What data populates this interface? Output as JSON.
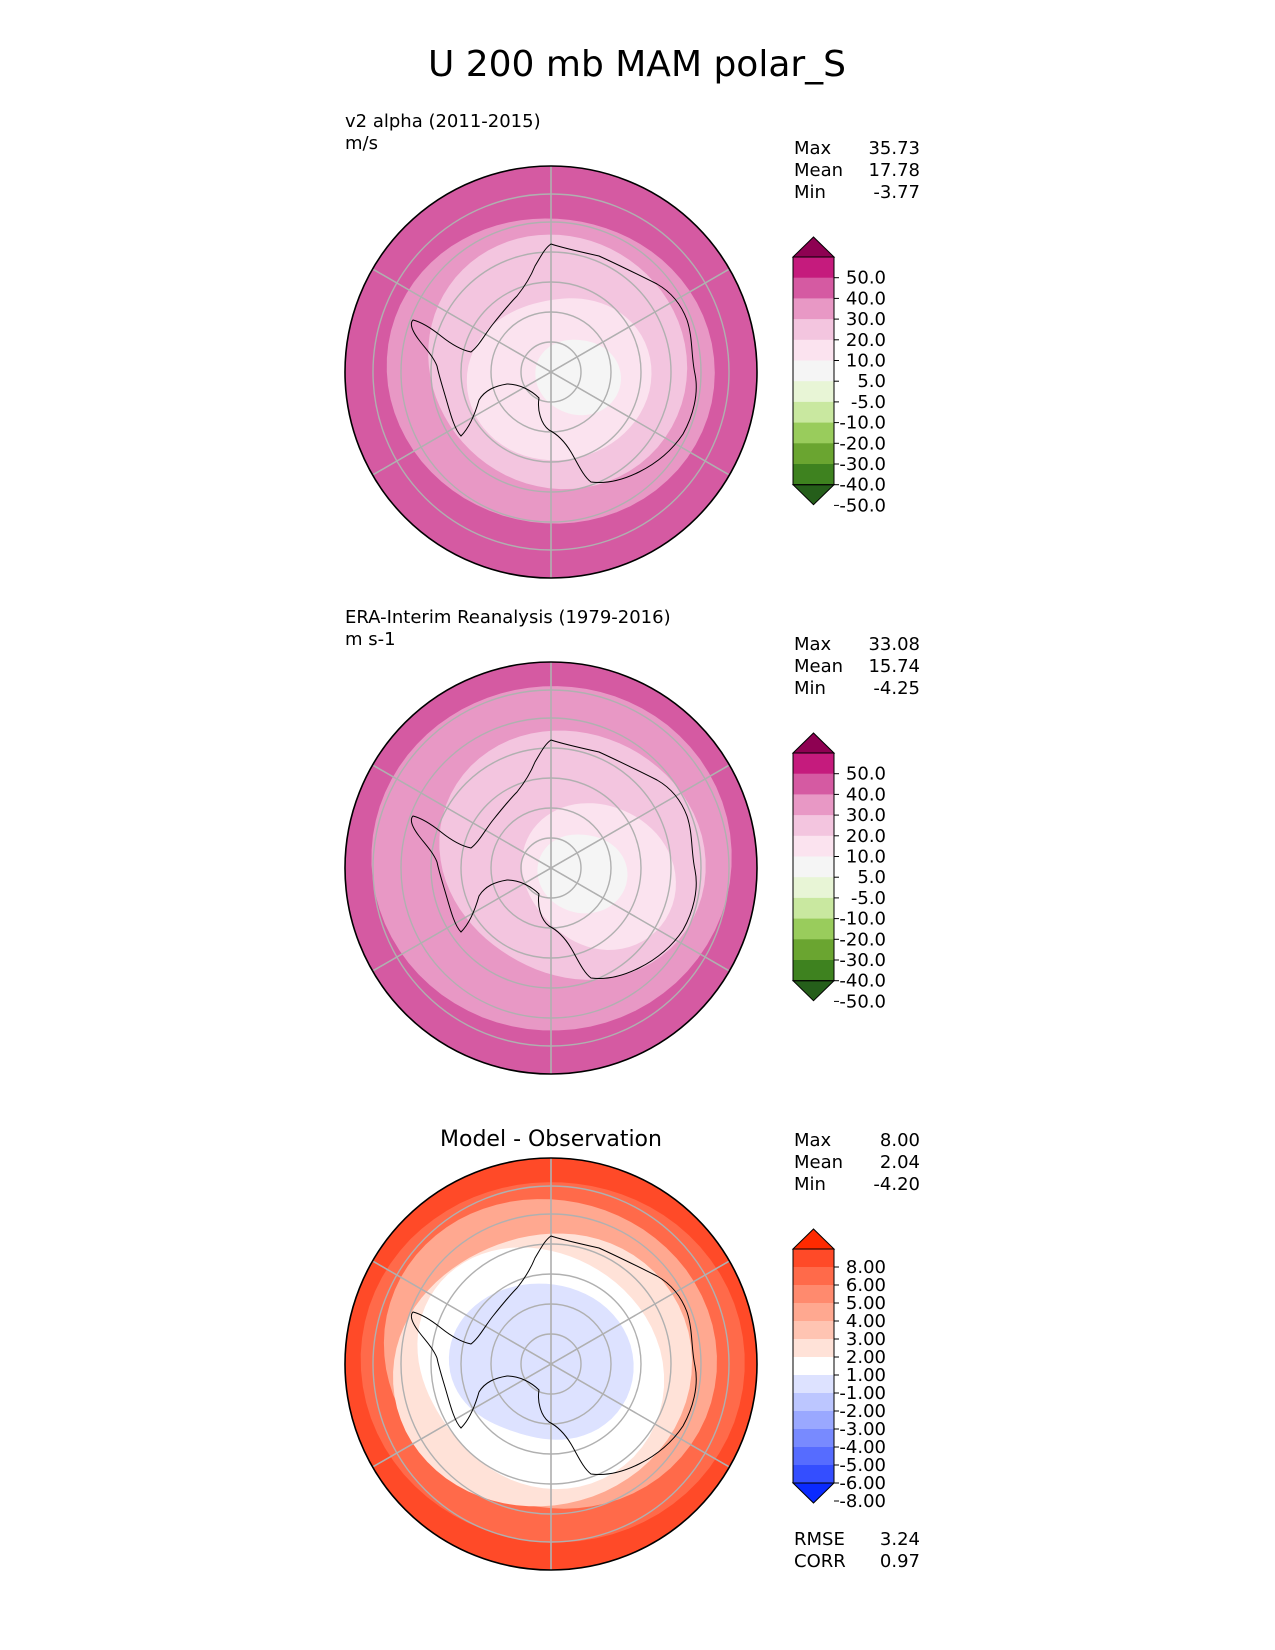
{
  "figure": {
    "title": "U 200 mb MAM polar_S"
  },
  "colors": {
    "full_field": [
      "#276419",
      "#4d9221",
      "#7fbc41",
      "#b8e186",
      "#e6f5d0",
      "#f7f7f7",
      "#fde0ef",
      "#f1b6da",
      "#de77ae",
      "#c51b7d",
      "#8e0152"
    ],
    "diff_field": [
      "#053061",
      "#2166ac",
      "#4393c3",
      "#92c5de",
      "#d1e5f0",
      "#ffffff",
      "#fddbc7",
      "#f4a582",
      "#d6604d",
      "#b2182b",
      "#67001f"
    ]
  },
  "chart_data": [
    {
      "type": "heatmap",
      "projection": "south-polar-stereographic",
      "title": "v2 alpha (2011-2015)",
      "subtitle": "m/s",
      "stats": [
        {
          "label": "Max",
          "value": "35.73"
        },
        {
          "label": "Mean",
          "value": "17.78"
        },
        {
          "label": "Min",
          "value": "-3.77"
        }
      ],
      "colorbar": {
        "ticks": [
          "50.0",
          "40.0",
          "30.0",
          "20.0",
          "10.0",
          "5.0",
          "-5.0",
          "-10.0",
          "-20.0",
          "-30.0",
          "-40.0",
          "-50.0"
        ],
        "colors": [
          "#8e0152",
          "#c51b7d",
          "#d55aa2",
          "#e898c5",
          "#f3c5df",
          "#fbe3ef",
          "#f5f5f5",
          "#e8f5d6",
          "#c9e8a0",
          "#99cc5c",
          "#6aa530",
          "#3e821f",
          "#255e1a"
        ]
      },
      "bands": [
        {
          "value_range": [
            30,
            40
          ],
          "color": "#d55aa2"
        },
        {
          "value_range": [
            20,
            30
          ],
          "color": "#e898c5"
        },
        {
          "value_range": [
            10,
            20
          ],
          "color": "#f3c5df"
        },
        {
          "value_range": [
            5,
            10
          ],
          "color": "#fbe3ef"
        },
        {
          "value_range": [
            -5,
            5
          ],
          "color": "#f5f5f5"
        }
      ]
    },
    {
      "type": "heatmap",
      "projection": "south-polar-stereographic",
      "title": "ERA-Interim Reanalysis (1979-2016)",
      "subtitle": "m s-1",
      "stats": [
        {
          "label": "Max",
          "value": "33.08"
        },
        {
          "label": "Mean",
          "value": "15.74"
        },
        {
          "label": "Min",
          "value": "-4.25"
        }
      ],
      "colorbar": {
        "ticks": [
          "50.0",
          "40.0",
          "30.0",
          "20.0",
          "10.0",
          "5.0",
          "-5.0",
          "-10.0",
          "-20.0",
          "-30.0",
          "-40.0",
          "-50.0"
        ],
        "colors": [
          "#8e0152",
          "#c51b7d",
          "#d55aa2",
          "#e898c5",
          "#f3c5df",
          "#fbe3ef",
          "#f5f5f5",
          "#e8f5d6",
          "#c9e8a0",
          "#99cc5c",
          "#6aa530",
          "#3e821f",
          "#255e1a"
        ]
      },
      "bands": [
        {
          "value_range": [
            30,
            40
          ],
          "color": "#d55aa2"
        },
        {
          "value_range": [
            20,
            30
          ],
          "color": "#e898c5"
        },
        {
          "value_range": [
            10,
            20
          ],
          "color": "#f3c5df"
        },
        {
          "value_range": [
            5,
            10
          ],
          "color": "#fbe3ef"
        },
        {
          "value_range": [
            -5,
            5
          ],
          "color": "#f5f5f5"
        }
      ]
    },
    {
      "type": "heatmap",
      "projection": "south-polar-stereographic",
      "title": "Model - Observation",
      "subtitle": "",
      "stats": [
        {
          "label": "Max",
          "value": "8.00"
        },
        {
          "label": "Mean",
          "value": "2.04"
        },
        {
          "label": "Min",
          "value": "-4.20"
        }
      ],
      "colorbar": {
        "ticks": [
          "8.00",
          "6.00",
          "5.00",
          "4.00",
          "3.00",
          "2.00",
          "1.00",
          "-1.00",
          "-2.00",
          "-3.00",
          "-4.00",
          "-5.00",
          "-6.00",
          "-8.00"
        ],
        "colors": [
          "#ff2a00",
          "#ff4a28",
          "#ff6a4a",
          "#ff8a6e",
          "#ffa890",
          "#ffc4b2",
          "#ffe2d8",
          "#ffffff",
          "#dde2ff",
          "#bcc6ff",
          "#9aa8ff",
          "#788aff",
          "#566cff",
          "#344eff",
          "#0a2aff"
        ]
      },
      "bands": [
        {
          "value_range": [
            6,
            8
          ],
          "color": "#ff4a28"
        },
        {
          "value_range": [
            5,
            6
          ],
          "color": "#ff6a4a"
        },
        {
          "value_range": [
            3,
            5
          ],
          "color": "#ffa890"
        },
        {
          "value_range": [
            1,
            3
          ],
          "color": "#ffe2d8"
        },
        {
          "value_range": [
            -1,
            1
          ],
          "color": "#ffffff"
        },
        {
          "value_range": [
            -2,
            -1
          ],
          "color": "#dde2ff"
        }
      ],
      "metrics": [
        {
          "label": "RMSE",
          "value": "3.24"
        },
        {
          "label": "CORR",
          "value": "0.97"
        }
      ]
    }
  ]
}
